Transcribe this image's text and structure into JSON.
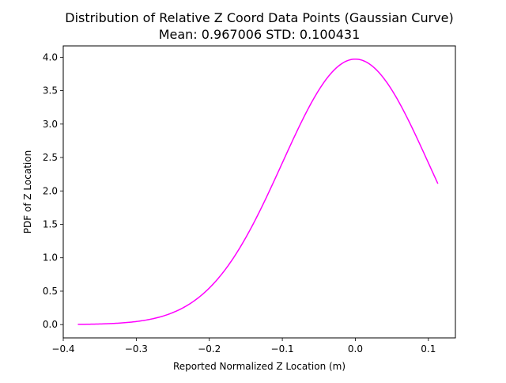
{
  "chart_data": {
    "type": "line",
    "title": "Distribution of Relative Z Coord Data Points (Gaussian Curve)",
    "subtitle": "Mean: 0.967006 STD: 0.100431",
    "xlabel": "Reported Normalized Z Location (m)",
    "ylabel": "PDF of Z Location",
    "xlim": [
      -0.4,
      0.137
    ],
    "ylim": [
      -0.199,
      4.17
    ],
    "xticks": [
      -0.4,
      -0.3,
      -0.2,
      -0.1,
      0.0,
      0.1
    ],
    "xtick_labels": [
      "−0.4",
      "−0.3",
      "−0.2",
      "−0.1",
      "0.0",
      "0.1"
    ],
    "yticks": [
      0.0,
      0.5,
      1.0,
      1.5,
      2.0,
      2.5,
      3.0,
      3.5,
      4.0
    ],
    "ytick_labels": [
      "0.0",
      "0.5",
      "1.0",
      "1.5",
      "2.0",
      "2.5",
      "3.0",
      "3.5",
      "4.0"
    ],
    "grid": false,
    "series": [
      {
        "color": "#ff00ff",
        "distribution": {
          "center": 0.0,
          "std": 0.100431
        },
        "x_range": [
          -0.38,
          0.113
        ]
      }
    ]
  }
}
